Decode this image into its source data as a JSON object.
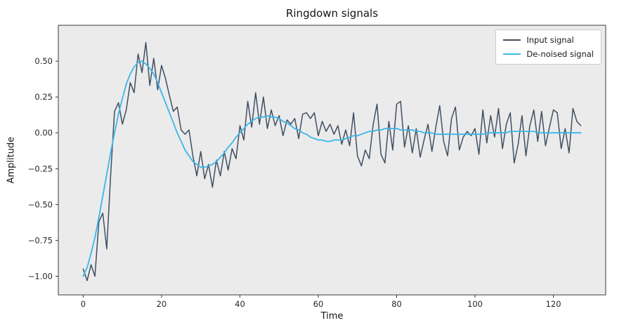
{
  "figure": {
    "bg": "#ffffff",
    "axes_bg": "#ebebeb",
    "border": "#3c3c3c",
    "tick_color": "#333333"
  },
  "chart_data": {
    "type": "line",
    "title": "Ringdown signals",
    "xlabel": "Time",
    "ylabel": "Amplitude",
    "xlim": [
      -6.35,
      133.35
    ],
    "ylim": [
      -1.13,
      0.75
    ],
    "grid": false,
    "legend_position": "upper right",
    "x_ticks": [
      0,
      20,
      40,
      60,
      80,
      100,
      120
    ],
    "x_tick_labels": [
      "0",
      "20",
      "40",
      "60",
      "80",
      "100",
      "120"
    ],
    "y_ticks": [
      0.5,
      0.25,
      0.0,
      -0.25,
      -0.5,
      -0.75,
      -1.0
    ],
    "y_tick_labels": [
      "0.50",
      "0.25",
      "0.00",
      "−0.25",
      "−0.50",
      "−0.75",
      "−1.00"
    ],
    "x_start": 0,
    "x_step": 1,
    "series": [
      {
        "name": "Input signal",
        "color": "#404f63",
        "linewidth": 1.5,
        "values": [
          -0.95,
          -1.03,
          -0.92,
          -1.0,
          -0.62,
          -0.56,
          -0.81,
          -0.3,
          0.15,
          0.21,
          0.06,
          0.16,
          0.35,
          0.28,
          0.55,
          0.42,
          0.63,
          0.33,
          0.52,
          0.3,
          0.47,
          0.38,
          0.26,
          0.15,
          0.18,
          0.02,
          -0.01,
          0.02,
          -0.16,
          -0.3,
          -0.13,
          -0.32,
          -0.22,
          -0.38,
          -0.19,
          -0.3,
          -0.13,
          -0.26,
          -0.11,
          -0.18,
          0.05,
          -0.05,
          0.22,
          0.04,
          0.28,
          0.06,
          0.25,
          0.03,
          0.16,
          0.05,
          0.12,
          -0.02,
          0.09,
          0.06,
          0.1,
          -0.04,
          0.13,
          0.14,
          0.1,
          0.14,
          -0.02,
          0.08,
          0.01,
          0.06,
          -0.01,
          0.05,
          -0.08,
          0.02,
          -0.09,
          0.14,
          -0.16,
          -0.23,
          -0.12,
          -0.18,
          0.06,
          0.2,
          -0.15,
          -0.21,
          0.08,
          -0.12,
          0.2,
          0.22,
          -0.1,
          0.05,
          -0.14,
          0.03,
          -0.17,
          -0.05,
          0.06,
          -0.13,
          0.04,
          0.19,
          -0.06,
          -0.16,
          0.1,
          0.18,
          -0.12,
          -0.03,
          0.01,
          -0.02,
          0.03,
          -0.15,
          0.16,
          -0.07,
          0.12,
          -0.03,
          0.17,
          -0.11,
          0.06,
          0.14,
          -0.21,
          -0.08,
          0.12,
          -0.16,
          0.05,
          0.16,
          -0.06,
          0.15,
          -0.09,
          0.04,
          0.16,
          0.14,
          -0.11,
          0.03,
          -0.14,
          0.17,
          0.08,
          0.05
        ]
      },
      {
        "name": "De-noised signal",
        "color": "#3ab7e9",
        "linewidth": 1.8,
        "values": [
          -1.0,
          -0.94,
          -0.84,
          -0.73,
          -0.59,
          -0.44,
          -0.29,
          -0.14,
          0.0,
          0.13,
          0.24,
          0.34,
          0.41,
          0.46,
          0.49,
          0.5,
          0.48,
          0.45,
          0.41,
          0.35,
          0.28,
          0.21,
          0.14,
          0.07,
          0.0,
          -0.06,
          -0.12,
          -0.16,
          -0.2,
          -0.22,
          -0.24,
          -0.24,
          -0.23,
          -0.22,
          -0.2,
          -0.17,
          -0.14,
          -0.1,
          -0.07,
          -0.03,
          0.0,
          0.03,
          0.06,
          0.08,
          0.1,
          0.11,
          0.11,
          0.12,
          0.11,
          0.11,
          0.1,
          0.08,
          0.07,
          0.05,
          0.03,
          0.02,
          0.0,
          -0.01,
          -0.03,
          -0.04,
          -0.05,
          -0.05,
          -0.06,
          -0.06,
          -0.05,
          -0.05,
          -0.05,
          -0.04,
          -0.03,
          -0.02,
          -0.02,
          -0.01,
          0.0,
          0.01,
          0.01,
          0.02,
          0.02,
          0.03,
          0.03,
          0.03,
          0.03,
          0.02,
          0.02,
          0.02,
          0.02,
          0.01,
          0.01,
          0.0,
          0.0,
          0.0,
          -0.01,
          -0.01,
          -0.01,
          -0.01,
          -0.01,
          -0.01,
          -0.01,
          -0.01,
          -0.01,
          -0.01,
          -0.01,
          -0.01,
          -0.01,
          0.0,
          0.0,
          0.0,
          0.0,
          0.0,
          0.0,
          0.01,
          0.01,
          0.01,
          0.01,
          0.01,
          0.01,
          0.01,
          0.0,
          0.0,
          0.0,
          0.0,
          0.0,
          0.0,
          0.0,
          0.0,
          0.0,
          0.0,
          0.0,
          0.0
        ]
      }
    ]
  }
}
